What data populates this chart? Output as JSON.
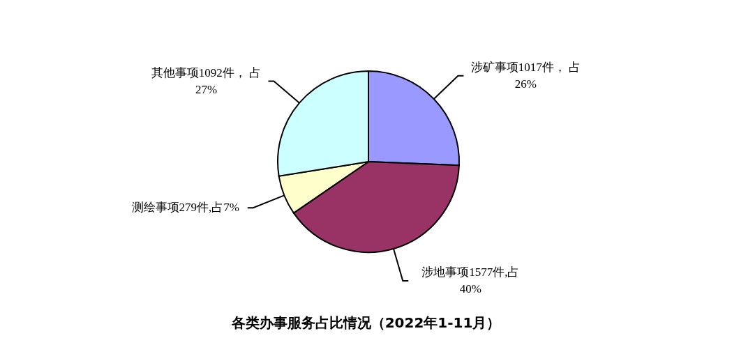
{
  "chart_data": {
    "type": "pie",
    "title": "各类办事服务占比情况（2022年1-11月）",
    "categories": [
      "涉矿事项",
      "涉地事项",
      "测绘事项",
      "其他事项"
    ],
    "values": [
      1017,
      1577,
      279,
      1092
    ],
    "value_labels": [
      "1017件， 占26%",
      "1577件,占40%",
      "279件,占7%",
      "1092件， 占27%"
    ],
    "colors": [
      "#9999ff",
      "#993366",
      "#ffffcc",
      "#ccffff"
    ],
    "legend": false
  }
}
